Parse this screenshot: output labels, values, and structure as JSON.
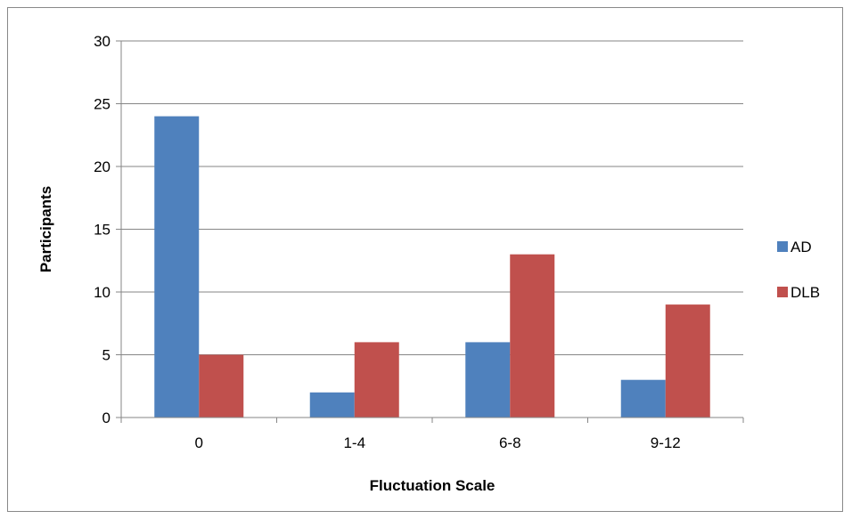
{
  "chart_data": {
    "type": "bar",
    "categories": [
      "0",
      "1-4",
      "6-8",
      "9-12"
    ],
    "series": [
      {
        "name": "AD",
        "values": [
          24,
          2,
          6,
          3
        ],
        "color": "#4F81BD"
      },
      {
        "name": "DLB",
        "values": [
          5,
          6,
          13,
          9
        ],
        "color": "#C0504D"
      }
    ],
    "xlabel": "Fluctuation Scale",
    "ylabel": "Participants",
    "ylim": [
      0,
      30
    ],
    "yticks": [
      0,
      5,
      10,
      15,
      20,
      25,
      30
    ],
    "grid": true,
    "legend_position": "right"
  }
}
